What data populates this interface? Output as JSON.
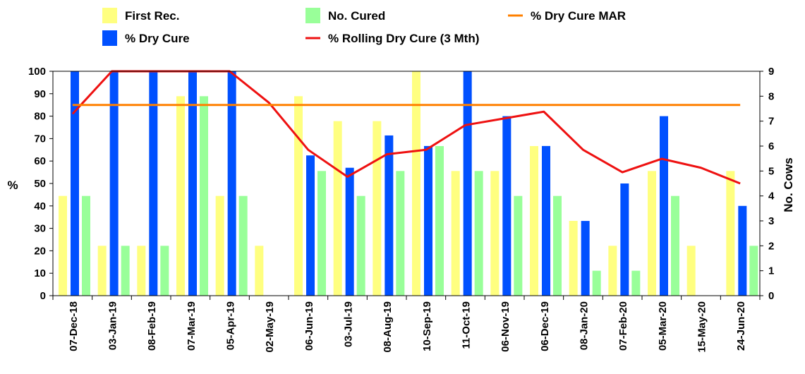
{
  "chart_data": {
    "type": "bar",
    "categories": [
      "07-Dec-18",
      "03-Jan-19",
      "08-Feb-19",
      "07-Mar-19",
      "05-Apr-19",
      "02-May-19",
      "06-Jun-19",
      "03-Jul-19",
      "08-Aug-19",
      "10-Sep-19",
      "11-Oct-19",
      "06-Nov-19",
      "06-Dec-19",
      "08-Jan-20",
      "07-Feb-20",
      "05-Mar-20",
      "15-May-20",
      "24-Jun-20"
    ],
    "ylabel": "%",
    "y2label": "No. Cows",
    "ylim": [
      0,
      100
    ],
    "y2lim": [
      0,
      9
    ],
    "yticks": [
      0,
      10,
      20,
      30,
      40,
      50,
      60,
      70,
      80,
      90,
      100
    ],
    "y2ticks": [
      0,
      1,
      2,
      3,
      4,
      5,
      6,
      7,
      8,
      9
    ],
    "legend_position": "top",
    "series": [
      {
        "name": "First Rec.",
        "type": "bar",
        "axis": "right",
        "color": "#ffff80",
        "values": [
          4,
          2,
          2,
          8,
          4,
          2,
          8,
          7,
          7,
          9,
          5,
          5,
          6,
          3,
          2,
          5,
          2,
          5
        ]
      },
      {
        "name": "% Dry Cure",
        "type": "bar",
        "axis": "left",
        "color": "#0050ff",
        "values": [
          100,
          100,
          100,
          100,
          100,
          null,
          62.5,
          57,
          71.4,
          66.7,
          100,
          80,
          66.7,
          33.3,
          50,
          80,
          null,
          40
        ]
      },
      {
        "name": "No. Cured",
        "type": "bar",
        "axis": "right",
        "color": "#99ff99",
        "values": [
          4,
          2,
          2,
          8,
          4,
          null,
          5,
          4,
          5,
          6,
          5,
          4,
          4,
          1,
          1,
          4,
          null,
          2
        ]
      },
      {
        "name": "% Rolling Dry Cure (3 Mth)",
        "type": "line",
        "axis": "left",
        "color": "#ee1111",
        "values": [
          81,
          100,
          100,
          100,
          100,
          86,
          65,
          53,
          63,
          65,
          76,
          79,
          82,
          65,
          55,
          61,
          57,
          50
        ]
      },
      {
        "name": "% Dry Cure MAR",
        "type": "line",
        "axis": "left",
        "color": "#ff8000",
        "values": [
          85,
          85,
          85,
          85,
          85,
          85,
          85,
          85,
          85,
          85,
          85,
          85,
          85,
          85,
          85,
          85,
          85,
          85
        ]
      }
    ],
    "legend": [
      {
        "label": "First Rec.",
        "swatch": "bar",
        "color": "#ffff80"
      },
      {
        "label": "% Dry Cure",
        "swatch": "bar",
        "color": "#0050ff"
      },
      {
        "label": "No. Cured",
        "swatch": "bar",
        "color": "#99ff99"
      },
      {
        "label": "% Rolling Dry Cure (3 Mth)",
        "swatch": "line",
        "color": "#ee1111"
      },
      {
        "label": "% Dry Cure MAR",
        "swatch": "line",
        "color": "#ff8000"
      }
    ]
  }
}
